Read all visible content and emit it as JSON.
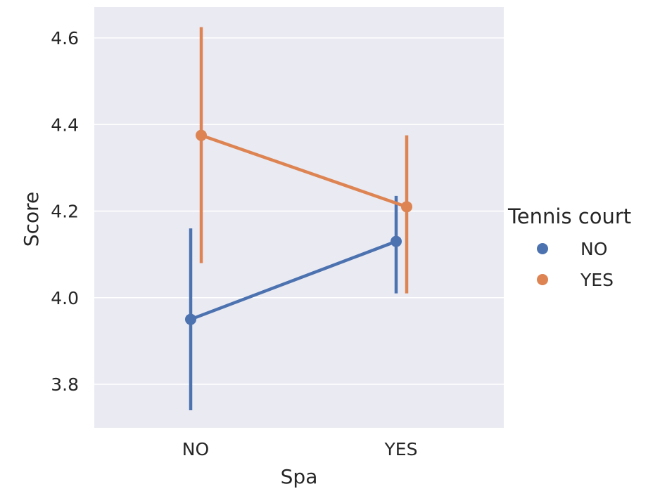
{
  "chart_data": {
    "type": "pointplot",
    "xlabel": "Spa",
    "ylabel": "Score",
    "categories": [
      "NO",
      "YES"
    ],
    "ylim": [
      3.7,
      4.7
    ],
    "yticks": [
      3.8,
      4.0,
      4.2,
      4.4,
      4.6
    ],
    "ytick_labels": [
      "3.8",
      "4.0",
      "4.2",
      "4.4",
      "4.6"
    ],
    "grid": true,
    "legend": {
      "title": "Tennis court",
      "placement": "right"
    },
    "series": [
      {
        "name": "NO",
        "color": "#4c72b0",
        "values": [
          3.95,
          4.13
        ],
        "ci_low": [
          3.74,
          4.01
        ],
        "ci_high": [
          4.16,
          4.235
        ]
      },
      {
        "name": "YES",
        "color": "#dd8452",
        "values": [
          4.375,
          4.21
        ],
        "ci_low": [
          4.08,
          4.01
        ],
        "ci_high": [
          4.625,
          4.375
        ]
      }
    ]
  },
  "colors": {
    "plot_background": "#eaeaf2",
    "grid": "#ffffff",
    "text": "#262626"
  }
}
